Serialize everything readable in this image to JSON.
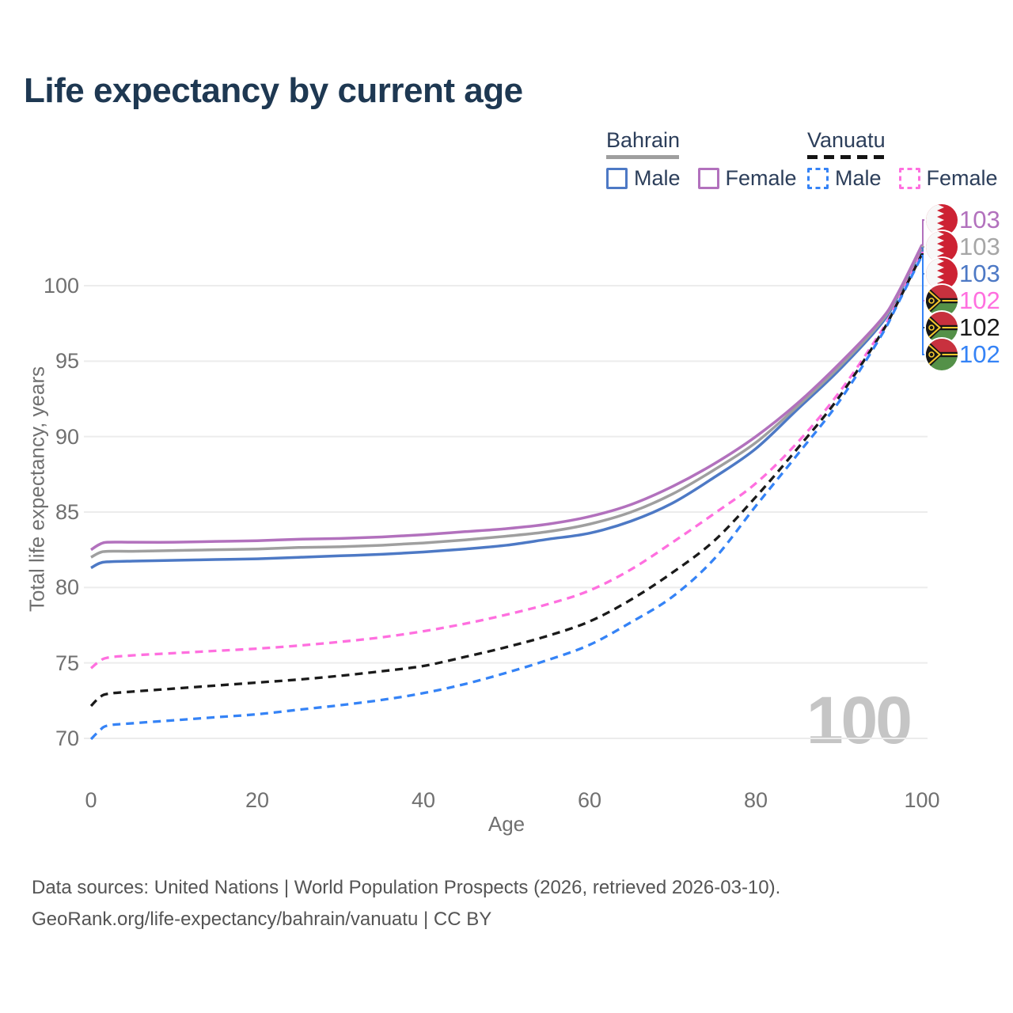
{
  "title": "Life expectancy by current age",
  "legend": {
    "bahrain_label": "Bahrain",
    "vanuatu_label": "Vanuatu",
    "bahrain_male_label": "Male",
    "bahrain_female_label": "Female",
    "vanuatu_male_label": "Male",
    "vanuatu_female_label": "Female"
  },
  "watermark_age": "100",
  "right_labels": [
    {
      "series": "bahrain_female",
      "flag": "Bahrain",
      "value": "103",
      "color": "#b271bd"
    },
    {
      "series": "bahrain_all",
      "flag": "Bahrain",
      "value": "103",
      "color": "#a6a6a6"
    },
    {
      "series": "bahrain_male",
      "flag": "Bahrain",
      "value": "103",
      "color": "#4d79c5"
    },
    {
      "series": "vanuatu_female",
      "flag": "Vanuatu",
      "value": "102",
      "color": "#ff6fdf"
    },
    {
      "series": "vanuatu_all",
      "flag": "Vanuatu",
      "value": "102",
      "color": "#1a1a1a"
    },
    {
      "series": "vanuatu_male",
      "flag": "Vanuatu",
      "value": "102",
      "color": "#3583f6"
    }
  ],
  "footer": {
    "line1": "Data sources: United Nations | World Population Prospects (2026, retrieved 2026-03-10).",
    "line2": "GeoRank.org/life-expectancy/bahrain/vanuatu | CC BY"
  },
  "chart_data": {
    "type": "line",
    "title": "Life expectancy by current age",
    "xlabel": "Age",
    "ylabel": "Total life expectancy, years",
    "x_ticks": [
      0,
      20,
      40,
      60,
      80,
      100
    ],
    "y_ticks": [
      70,
      75,
      80,
      85,
      90,
      95,
      100
    ],
    "xlim": [
      0,
      100
    ],
    "ylim": [
      68,
      104
    ],
    "grid": "horizontal",
    "legend_position": "top-right",
    "ages": [
      0,
      1,
      2,
      5,
      10,
      15,
      20,
      25,
      30,
      35,
      40,
      45,
      50,
      55,
      60,
      65,
      70,
      75,
      80,
      85,
      90,
      95,
      97,
      100
    ],
    "series": [
      {
        "id": "bahrain_male",
        "name": "Bahrain Male",
        "country": "Bahrain",
        "sex": "male",
        "color": "#4d79c5",
        "line_style": "solid",
        "values": [
          81.3,
          81.6,
          81.7,
          81.75,
          81.8,
          81.85,
          81.9,
          82.0,
          82.1,
          82.2,
          82.35,
          82.55,
          82.8,
          83.2,
          83.6,
          84.4,
          85.6,
          87.3,
          89.2,
          91.8,
          94.4,
          97.4,
          99.2,
          102.5
        ]
      },
      {
        "id": "bahrain_all",
        "name": "Bahrain (both sexes)",
        "country": "Bahrain",
        "sex": "all",
        "color": "#9f9f9f",
        "line_style": "solid",
        "values": [
          82.0,
          82.3,
          82.4,
          82.4,
          82.45,
          82.5,
          82.55,
          82.65,
          82.7,
          82.8,
          82.95,
          83.15,
          83.4,
          83.7,
          84.2,
          85.0,
          86.2,
          87.8,
          89.6,
          92.0,
          94.6,
          97.55,
          99.3,
          102.6
        ]
      },
      {
        "id": "bahrain_female",
        "name": "Bahrain Female",
        "country": "Bahrain",
        "sex": "female",
        "color": "#b271bd",
        "line_style": "solid",
        "values": [
          82.5,
          82.85,
          83.0,
          83.0,
          83.0,
          83.05,
          83.1,
          83.2,
          83.25,
          83.35,
          83.5,
          83.7,
          83.9,
          84.2,
          84.7,
          85.5,
          86.7,
          88.2,
          90.0,
          92.2,
          94.8,
          97.7,
          99.4,
          102.7
        ]
      },
      {
        "id": "vanuatu_female",
        "name": "Vanuatu Female",
        "country": "Vanuatu",
        "sex": "female",
        "color": "#ff6fdf",
        "line_style": "dashed",
        "values": [
          74.65,
          75.1,
          75.35,
          75.5,
          75.65,
          75.8,
          75.95,
          76.15,
          76.4,
          76.7,
          77.1,
          77.6,
          78.2,
          78.9,
          79.8,
          81.2,
          83.0,
          84.9,
          86.9,
          89.6,
          92.9,
          96.9,
          98.9,
          102.2
        ]
      },
      {
        "id": "vanuatu_all",
        "name": "Vanuatu (both sexes)",
        "country": "Vanuatu",
        "sex": "all",
        "color": "#1a1a1a",
        "line_style": "dashed",
        "values": [
          72.15,
          72.7,
          72.95,
          73.1,
          73.3,
          73.5,
          73.7,
          73.9,
          74.15,
          74.45,
          74.8,
          75.4,
          76.05,
          76.8,
          77.75,
          79.2,
          81.0,
          83.1,
          86.0,
          89.2,
          92.6,
          96.75,
          98.8,
          102.1
        ]
      },
      {
        "id": "vanuatu_male",
        "name": "Vanuatu Male",
        "country": "Vanuatu",
        "sex": "male",
        "color": "#3583f6",
        "line_style": "dashed",
        "values": [
          69.95,
          70.5,
          70.85,
          71.0,
          71.2,
          71.4,
          71.6,
          71.9,
          72.2,
          72.55,
          73.0,
          73.6,
          74.35,
          75.2,
          76.2,
          77.7,
          79.4,
          81.9,
          85.4,
          88.8,
          92.3,
          96.6,
          98.7,
          102.0
        ]
      }
    ]
  }
}
